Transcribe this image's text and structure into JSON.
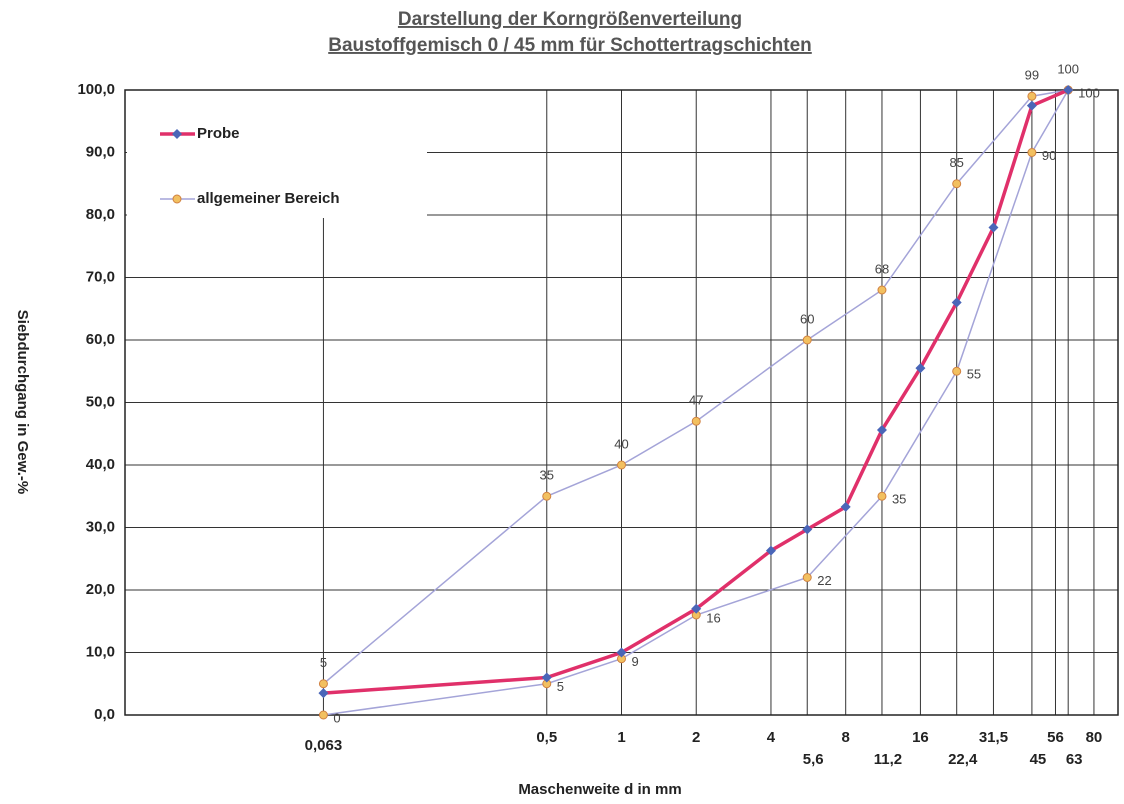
{
  "chart_data": {
    "type": "line",
    "title": "Darstellung der Korngrößenverteilung",
    "subtitle": "Baustoffgemisch 0 / 45 mm für Schottertragschichten",
    "x_label": "Maschenweite d in mm",
    "y_label": "Siebdurchgang in Gew.-%",
    "log_x": true,
    "grid": true,
    "legend": "upper left",
    "xlim": [
      0.01,
      100
    ],
    "ylim": [
      0,
      100
    ],
    "xticks": [
      {
        "value": 0.063,
        "label": "0,063"
      },
      {
        "value": 0.5,
        "label": "0,5"
      },
      1,
      2,
      4,
      {
        "value": 5.6,
        "label": "5,6"
      },
      8,
      {
        "value": 11.2,
        "label": "11,2"
      },
      16,
      {
        "value": 22.4,
        "label": "22,4"
      },
      {
        "value": 31.5,
        "label": "31,5"
      },
      45,
      56,
      63,
      80
    ],
    "yticks": [
      {
        "value": 0,
        "label": "0,0"
      },
      {
        "value": 10,
        "label": "10,0"
      },
      {
        "value": 20,
        "label": "20,0"
      },
      {
        "value": 30,
        "label": "30,0"
      },
      {
        "value": 40,
        "label": "40,0"
      },
      {
        "value": 50,
        "label": "50,0"
      },
      {
        "value": 60,
        "label": "60,0"
      },
      {
        "value": 70,
        "label": "70,0"
      },
      {
        "value": 80,
        "label": "80,0"
      },
      {
        "value": 90,
        "label": "90,0"
      },
      {
        "value": 100,
        "label": "100,0"
      }
    ],
    "series": [
      {
        "name": "Probe",
        "color": "#e0306a",
        "marker_color": "#4a66b8",
        "x": [
          0.063,
          0.5,
          1,
          2,
          4,
          5.6,
          8,
          11.2,
          16,
          22.4,
          31.5,
          45,
          63
        ],
        "values": [
          3.5,
          6,
          10,
          17,
          26.3,
          29.7,
          33.3,
          45.6,
          55.5,
          66,
          78,
          97.5,
          100
        ]
      },
      {
        "name": "allgemeiner Bereich",
        "color": "#a4a4d8",
        "marker_color": "#f2c060",
        "x": [
          0.063,
          0.5,
          1,
          2,
          5.6,
          11.2,
          22.4,
          45,
          63
        ],
        "values": [
          5,
          35,
          40,
          47,
          60,
          68,
          85,
          99,
          100
        ]
      },
      {
        "color": "#a4a4d8",
        "marker_color": "#f2c060",
        "x": [
          0.063,
          0.5,
          1,
          2,
          5.6,
          11.2,
          22.4,
          45,
          63
        ],
        "values": [
          0,
          5,
          9,
          16,
          22,
          35,
          55,
          90,
          100
        ]
      }
    ]
  }
}
